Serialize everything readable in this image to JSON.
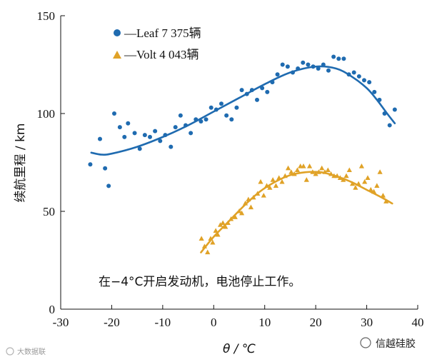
{
  "chart_data": {
    "type": "scatter",
    "xlabel": "θ / ℃",
    "ylabel": "续航里程 / km",
    "xlim": [
      -30,
      40
    ],
    "ylim": [
      0,
      150
    ],
    "xticks": [
      -30,
      -20,
      -10,
      0,
      10,
      20,
      30,
      40
    ],
    "yticks": [
      0,
      50,
      100,
      150
    ],
    "grid": false,
    "legend_position": "top-left",
    "annotation": "在−4°C开启发动机，电池停止工作。",
    "series": [
      {
        "name": "—Leaf  7 375辆",
        "marker": "circle",
        "color": "#1f6bb0",
        "points": [
          [
            -24.2,
            74
          ],
          [
            -22.3,
            87
          ],
          [
            -21.3,
            72
          ],
          [
            -20.6,
            63
          ],
          [
            -19.5,
            100
          ],
          [
            -18.4,
            93
          ],
          [
            -17.5,
            88
          ],
          [
            -16.8,
            95
          ],
          [
            -15.5,
            90
          ],
          [
            -14.5,
            82
          ],
          [
            -13.5,
            89
          ],
          [
            -12.5,
            88
          ],
          [
            -11.5,
            91
          ],
          [
            -10.5,
            86
          ],
          [
            -9.5,
            89
          ],
          [
            -8.4,
            83
          ],
          [
            -7.5,
            93
          ],
          [
            -6.5,
            99
          ],
          [
            -5.5,
            94
          ],
          [
            -4.5,
            90
          ],
          [
            -3.5,
            97
          ],
          [
            -2.5,
            96
          ],
          [
            -1.5,
            97
          ],
          [
            -0.5,
            103
          ],
          [
            0.5,
            102
          ],
          [
            1.5,
            105
          ],
          [
            2.5,
            99
          ],
          [
            3.5,
            97
          ],
          [
            4.5,
            103
          ],
          [
            5.5,
            112
          ],
          [
            6.5,
            110
          ],
          [
            7.5,
            112
          ],
          [
            8.5,
            107
          ],
          [
            9.5,
            113
          ],
          [
            10.5,
            111
          ],
          [
            11.5,
            116
          ],
          [
            12.5,
            120
          ],
          [
            13.5,
            125
          ],
          [
            14.5,
            124
          ],
          [
            15.5,
            121
          ],
          [
            16.5,
            123
          ],
          [
            17.5,
            126
          ],
          [
            18.5,
            125
          ],
          [
            19.5,
            124
          ],
          [
            20.5,
            123
          ],
          [
            21.5,
            125
          ],
          [
            22.5,
            122
          ],
          [
            23.5,
            129
          ],
          [
            24.5,
            128
          ],
          [
            25.5,
            128
          ],
          [
            26.5,
            120
          ],
          [
            27.5,
            121
          ],
          [
            28.5,
            119
          ],
          [
            29.5,
            117
          ],
          [
            30.5,
            116
          ],
          [
            31.5,
            111
          ],
          [
            32.5,
            107
          ],
          [
            33.5,
            100
          ],
          [
            34.5,
            94
          ],
          [
            35.5,
            102
          ]
        ],
        "fit": [
          [
            -24,
            80
          ],
          [
            -22,
            79
          ],
          [
            -20,
            79.5
          ],
          [
            -15,
            83
          ],
          [
            -10,
            88
          ],
          [
            -5,
            94
          ],
          [
            0,
            101
          ],
          [
            5,
            108
          ],
          [
            10,
            115
          ],
          [
            15,
            121
          ],
          [
            20,
            124
          ],
          [
            24,
            123
          ],
          [
            27,
            119
          ],
          [
            30,
            113
          ],
          [
            32,
            107
          ],
          [
            34,
            100
          ],
          [
            35.5,
            95
          ]
        ]
      },
      {
        "name": "—Volt 4 043辆",
        "marker": "triangle",
        "color": "#e0a227",
        "points": [
          [
            -2.4,
            36
          ],
          [
            -1.8,
            32
          ],
          [
            -1.2,
            29
          ],
          [
            -0.6,
            36
          ],
          [
            -0.2,
            34
          ],
          [
            0.4,
            40
          ],
          [
            0.8,
            38
          ],
          [
            1.3,
            43
          ],
          [
            1.8,
            44
          ],
          [
            2.3,
            42
          ],
          [
            2.8,
            44
          ],
          [
            3.4,
            46
          ],
          [
            4.2,
            47
          ],
          [
            5.0,
            50
          ],
          [
            5.5,
            49
          ],
          [
            6.2,
            54
          ],
          [
            6.8,
            56
          ],
          [
            7.3,
            52
          ],
          [
            7.8,
            57
          ],
          [
            8.6,
            59
          ],
          [
            9.2,
            65
          ],
          [
            9.8,
            58
          ],
          [
            10.4,
            63
          ],
          [
            11.0,
            62
          ],
          [
            11.6,
            66
          ],
          [
            12.2,
            63
          ],
          [
            12.8,
            67
          ],
          [
            13.4,
            65
          ],
          [
            14.0,
            68
          ],
          [
            14.6,
            72
          ],
          [
            15.2,
            70
          ],
          [
            15.8,
            69
          ],
          [
            16.4,
            71
          ],
          [
            17.0,
            73
          ],
          [
            17.6,
            73
          ],
          [
            18.2,
            66
          ],
          [
            18.8,
            73
          ],
          [
            19.4,
            70
          ],
          [
            20.0,
            69
          ],
          [
            20.6,
            70
          ],
          [
            21.2,
            72
          ],
          [
            21.8,
            70
          ],
          [
            22.4,
            71
          ],
          [
            23.0,
            69
          ],
          [
            23.6,
            68
          ],
          [
            24.2,
            68
          ],
          [
            24.8,
            67
          ],
          [
            25.4,
            66
          ],
          [
            26.0,
            68
          ],
          [
            26.6,
            71
          ],
          [
            27.2,
            64
          ],
          [
            27.8,
            62
          ],
          [
            28.4,
            64
          ],
          [
            29.0,
            73
          ],
          [
            29.6,
            65
          ],
          [
            30.2,
            67
          ],
          [
            30.8,
            61
          ],
          [
            31.4,
            60
          ],
          [
            32.0,
            63
          ],
          [
            32.6,
            70
          ],
          [
            33.2,
            58
          ],
          [
            33.8,
            55
          ]
        ],
        "fit": [
          [
            -2.5,
            29
          ],
          [
            0,
            37
          ],
          [
            3,
            45
          ],
          [
            6,
            53
          ],
          [
            9,
            60
          ],
          [
            12,
            65
          ],
          [
            15,
            68.5
          ],
          [
            18,
            70
          ],
          [
            21,
            70
          ],
          [
            24,
            68
          ],
          [
            27,
            65
          ],
          [
            30,
            61
          ],
          [
            33,
            57
          ],
          [
            35,
            54
          ]
        ]
      }
    ]
  },
  "watermarks": {
    "bottom_left": "大数据联",
    "bottom_right": "信越硅胶"
  }
}
